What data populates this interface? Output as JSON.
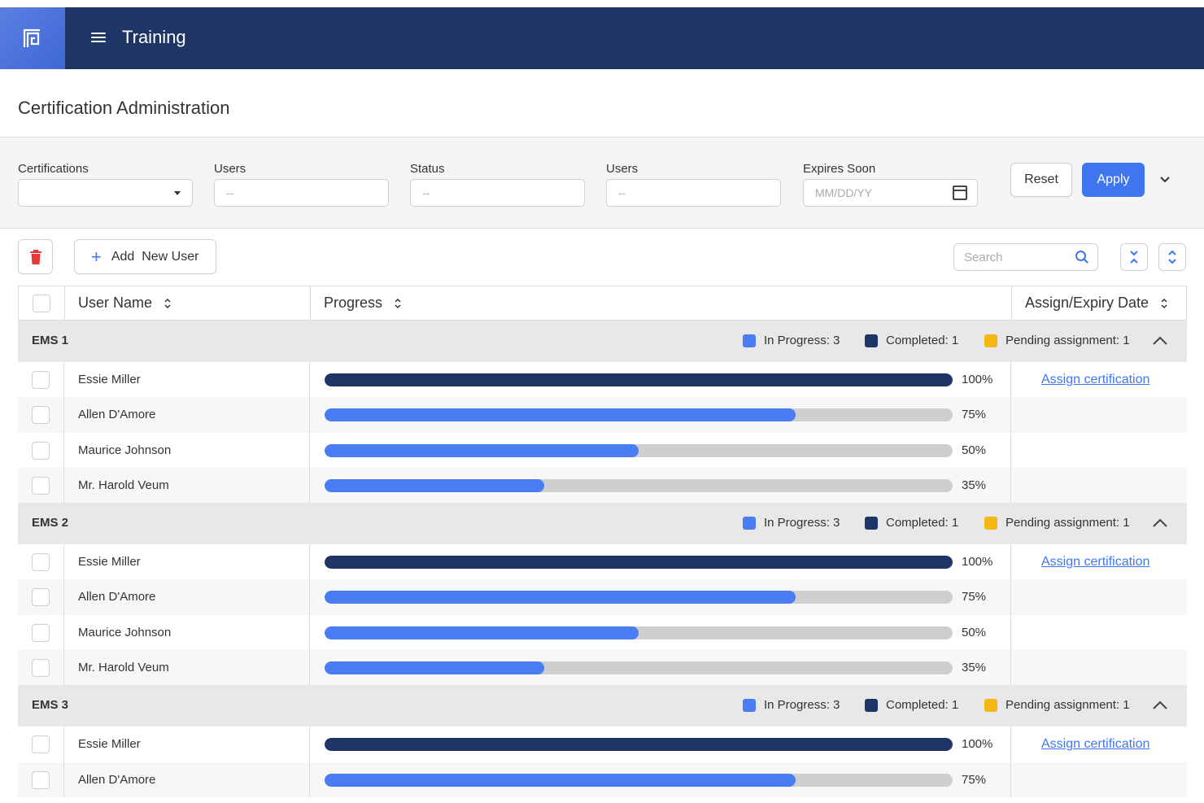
{
  "app": {
    "title": "Training"
  },
  "page": {
    "title": "Certification Administration"
  },
  "filters": {
    "certifications": {
      "label": "Certifications",
      "value": ""
    },
    "users1": {
      "label": "Users",
      "placeholder": "--"
    },
    "status": {
      "label": "Status",
      "placeholder": "--"
    },
    "users2": {
      "label": "Users",
      "placeholder": "--"
    },
    "expires": {
      "label": "Expires Soon",
      "placeholder": "MM/DD/YY"
    },
    "reset_label": "Reset",
    "apply_label": "Apply"
  },
  "toolbar": {
    "add_label": "Add  New User",
    "search_placeholder": "Search"
  },
  "columns": {
    "user": "User Name",
    "progress": "Progress",
    "assign": "Assign/Expiry Date"
  },
  "colors": {
    "in_progress": "#4a7cf3",
    "completed": "#1e3566",
    "pending": "#f2b713"
  },
  "groups": [
    {
      "name": "EMS 1",
      "legend": {
        "in_progress": "In Progress: 3",
        "completed": "Completed: 1",
        "pending": "Pending assignment: 1"
      },
      "rows": [
        {
          "name": "Essie Miller",
          "progress": 100,
          "pct": "100%",
          "action": "Assign certification"
        },
        {
          "name": "Allen D'Amore",
          "progress": 75,
          "pct": "75%",
          "action": ""
        },
        {
          "name": "Maurice Johnson",
          "progress": 50,
          "pct": "50%",
          "action": ""
        },
        {
          "name": "Mr. Harold Veum",
          "progress": 35,
          "pct": "35%",
          "action": ""
        }
      ]
    },
    {
      "name": "EMS 2",
      "legend": {
        "in_progress": "In Progress: 3",
        "completed": "Completed: 1",
        "pending": "Pending assignment: 1"
      },
      "rows": [
        {
          "name": "Essie Miller",
          "progress": 100,
          "pct": "100%",
          "action": "Assign certification"
        },
        {
          "name": "Allen D'Amore",
          "progress": 75,
          "pct": "75%",
          "action": ""
        },
        {
          "name": "Maurice Johnson",
          "progress": 50,
          "pct": "50%",
          "action": ""
        },
        {
          "name": "Mr. Harold Veum",
          "progress": 35,
          "pct": "35%",
          "action": ""
        }
      ]
    },
    {
      "name": "EMS 3",
      "legend": {
        "in_progress": "In Progress: 3",
        "completed": "Completed: 1",
        "pending": "Pending assignment: 1"
      },
      "rows": [
        {
          "name": "Essie Miller",
          "progress": 100,
          "pct": "100%",
          "action": "Assign certification"
        },
        {
          "name": "Allen D'Amore",
          "progress": 75,
          "pct": "75%",
          "action": ""
        }
      ]
    }
  ]
}
